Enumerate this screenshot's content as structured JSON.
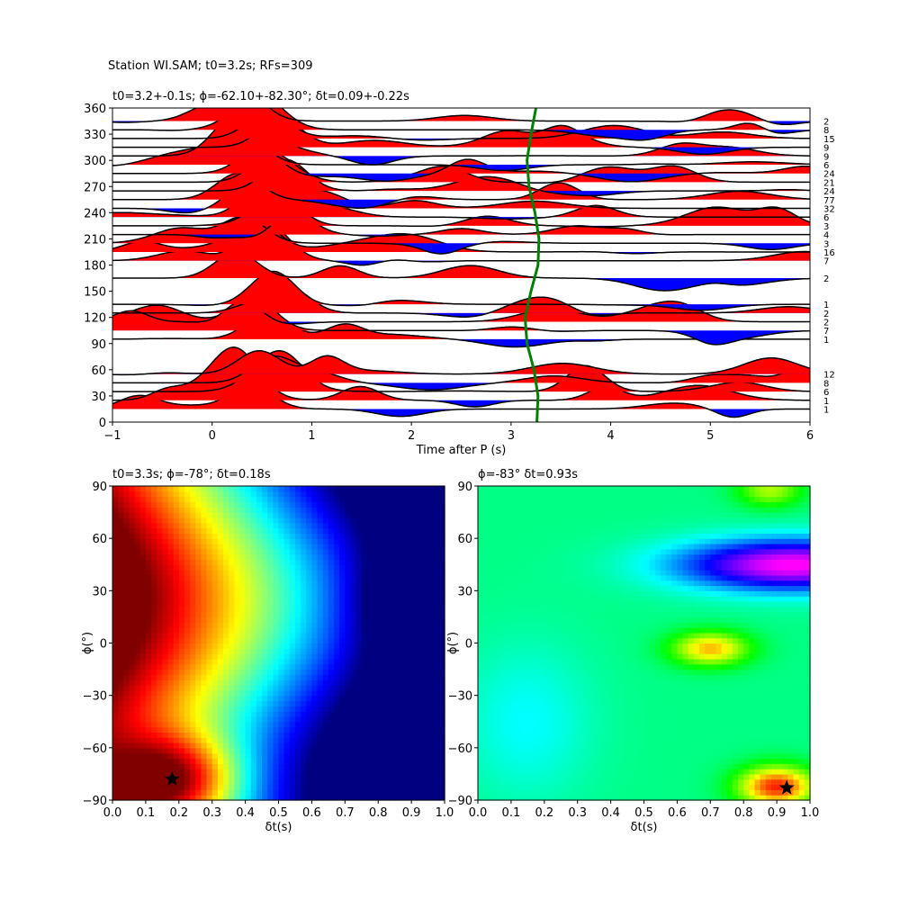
{
  "suptitle": "Station WI.SAM; t0=3.2s; RFs=309",
  "chart_data": [
    {
      "type": "line",
      "title": "t0=3.2+-0.1s; ϕ=-62.10+-82.30°; δt=0.09+-0.22s",
      "xlabel": "Time after P (s)",
      "ylabel": "",
      "xlim": [
        -1,
        6
      ],
      "ylim": [
        0,
        360
      ],
      "xticks": [
        "−1",
        "0",
        "1",
        "2",
        "3",
        "4",
        "5",
        "6"
      ],
      "yticks": [
        "0",
        "30",
        "60",
        "90",
        "120",
        "150",
        "180",
        "210",
        "240",
        "270",
        "300",
        "330",
        "360"
      ],
      "positive_fill": "#ff0000",
      "negative_fill": "#0000ff",
      "trace_color": "#000000",
      "picked_curve_color": "#008000",
      "traces": [
        {
          "baz": 345,
          "count": "2"
        },
        {
          "baz": 335,
          "count": "8"
        },
        {
          "baz": 325,
          "count": "15"
        },
        {
          "baz": 315,
          "count": "9"
        },
        {
          "baz": 305,
          "count": "9"
        },
        {
          "baz": 295,
          "count": "6"
        },
        {
          "baz": 285,
          "count": "24"
        },
        {
          "baz": 275,
          "count": "21"
        },
        {
          "baz": 265,
          "count": "24"
        },
        {
          "baz": 255,
          "count": "77"
        },
        {
          "baz": 245,
          "count": "32"
        },
        {
          "baz": 235,
          "count": "6"
        },
        {
          "baz": 225,
          "count": "3"
        },
        {
          "baz": 215,
          "count": "4"
        },
        {
          "baz": 205,
          "count": "3"
        },
        {
          "baz": 195,
          "count": "16"
        },
        {
          "baz": 185,
          "count": "7"
        },
        {
          "baz": 165,
          "count": "2"
        },
        {
          "baz": 135,
          "count": "1"
        },
        {
          "baz": 125,
          "count": "2"
        },
        {
          "baz": 115,
          "count": "2"
        },
        {
          "baz": 105,
          "count": "7"
        },
        {
          "baz": 95,
          "count": "1"
        },
        {
          "baz": 55,
          "count": "12"
        },
        {
          "baz": 45,
          "count": "8"
        },
        {
          "baz": 35,
          "count": "6"
        },
        {
          "baz": 25,
          "count": "1"
        },
        {
          "baz": 15,
          "count": "1"
        }
      ],
      "picked_time_curve": {
        "baz": [
          0,
          30,
          60,
          90,
          120,
          150,
          180,
          210,
          240,
          270,
          300,
          330,
          360
        ],
        "t": [
          3.26,
          3.27,
          3.23,
          3.16,
          3.14,
          3.2,
          3.27,
          3.28,
          3.24,
          3.18,
          3.16,
          3.2,
          3.25
        ]
      }
    },
    {
      "type": "heatmap",
      "title": "t0=3.3s; ϕ=-78°; δt=0.18s",
      "xlabel": "δt(s)",
      "ylabel": "ϕ(°)",
      "xlim": [
        0.0,
        1.0
      ],
      "ylim": [
        -90,
        90
      ],
      "xticks": [
        "0.0",
        "0.1",
        "0.2",
        "0.3",
        "0.4",
        "0.5",
        "0.6",
        "0.7",
        "0.8",
        "0.9",
        "1.0"
      ],
      "yticks": [
        "−90",
        "−60",
        "−30",
        "0",
        "30",
        "60",
        "90"
      ],
      "colormap": "jet_r",
      "marker": {
        "x": 0.18,
        "y": -78,
        "symbol": "star"
      }
    },
    {
      "type": "heatmap",
      "title": "ϕ=-83° δt=0.93s",
      "xlabel": "δt(s)",
      "ylabel": "ϕ(°)",
      "xlim": [
        0.0,
        1.0
      ],
      "ylim": [
        -90,
        90
      ],
      "xticks": [
        "0.0",
        "0.1",
        "0.2",
        "0.3",
        "0.4",
        "0.5",
        "0.6",
        "0.7",
        "0.8",
        "0.9",
        "1.0"
      ],
      "yticks": [
        "−90",
        "−60",
        "−30",
        "0",
        "30",
        "60",
        "90"
      ],
      "colormap": "hsv",
      "marker": {
        "x": 0.93,
        "y": -83,
        "symbol": "star"
      }
    }
  ]
}
